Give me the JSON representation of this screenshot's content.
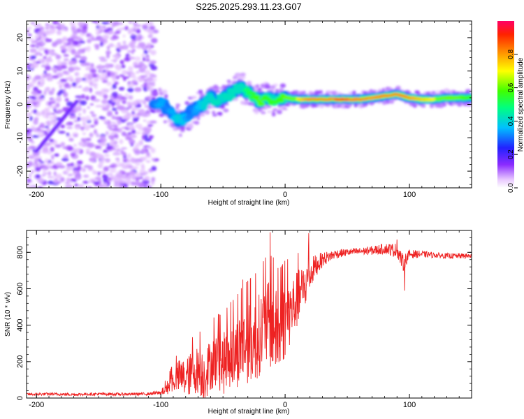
{
  "figure": {
    "title": "S225.2025.293.11.23.G07"
  },
  "chart_data": [
    {
      "type": "heatmap",
      "name": "spectrogram",
      "xlabel": "Height of straight line (km)",
      "ylabel": "Frequency (Hz)",
      "xlim": [
        -208,
        150
      ],
      "ylim": [
        -25,
        25
      ],
      "xticks": [
        -200,
        -100,
        0,
        100
      ],
      "yticks": [
        -20,
        -10,
        0,
        10,
        20
      ],
      "xtick_labels": [
        "-200",
        "-100",
        "0",
        "100"
      ],
      "ytick_labels": [
        "-20",
        "-10",
        "0",
        "10",
        "20"
      ],
      "noise_region": {
        "x": [
          -208,
          -104
        ],
        "y": [
          -25,
          25
        ],
        "level": 0.12
      },
      "ridge": {
        "x": [
          -105,
          -100,
          -95,
          -90,
          -85,
          -80,
          -75,
          -70,
          -65,
          -60,
          -55,
          -50,
          -45,
          -40,
          -35,
          -30,
          -25,
          -20,
          -15,
          -10,
          -5,
          0,
          10,
          20,
          30,
          40,
          50,
          60,
          70,
          80,
          90,
          100,
          110,
          120,
          130,
          140,
          150
        ],
        "freq": [
          -1,
          1,
          -2,
          -3,
          -5,
          -4,
          -2,
          -1,
          0,
          2,
          1,
          2,
          3,
          4,
          5,
          4,
          2,
          1,
          2,
          1,
          2,
          2,
          1.5,
          1.5,
          1.5,
          1.5,
          1.5,
          1.5,
          2,
          2.5,
          3,
          2,
          1.5,
          1.5,
          2,
          2,
          2
        ],
        "amplitude": [
          0.3,
          0.35,
          0.3,
          0.35,
          0.4,
          0.35,
          0.3,
          0.35,
          0.4,
          0.4,
          0.45,
          0.4,
          0.45,
          0.45,
          0.45,
          0.5,
          0.55,
          0.6,
          0.55,
          0.55,
          0.55,
          0.6,
          0.7,
          0.85,
          0.85,
          0.9,
          0.9,
          0.85,
          0.8,
          0.85,
          0.85,
          0.8,
          0.75,
          0.7,
          0.6,
          0.6,
          0.55
        ]
      },
      "colorbar": {
        "label": "Normalized spectral amplitude",
        "range": [
          0,
          1
        ],
        "ticks": [
          0.0,
          0.2,
          0.4,
          0.6,
          0.8
        ],
        "tick_labels": [
          "0.0",
          "0.2",
          "0.4",
          "0.6",
          "0.8"
        ]
      }
    },
    {
      "type": "line",
      "name": "snr",
      "xlabel": "Height of straight line (km)",
      "ylabel": "SNR (10 * v/v)",
      "xlim": [
        -208,
        150
      ],
      "ylim": [
        0,
        920
      ],
      "xticks": [
        -200,
        -100,
        0,
        100
      ],
      "yticks": [
        0,
        200,
        400,
        600,
        800
      ],
      "xtick_labels": [
        "-200",
        "-100",
        "0",
        "100"
      ],
      "ytick_labels": [
        "0",
        "200",
        "400",
        "600",
        "800"
      ],
      "color": "#ee2222",
      "series": [
        {
          "name": "SNR",
          "x": [
            -208,
            -190,
            -170,
            -150,
            -130,
            -110,
            -100,
            -95,
            -90,
            -85,
            -80,
            -75,
            -70,
            -65,
            -60,
            -55,
            -50,
            -45,
            -40,
            -35,
            -30,
            -25,
            -20,
            -15,
            -10,
            -5,
            0,
            5,
            10,
            15,
            20,
            25,
            30,
            40,
            50,
            60,
            70,
            80,
            90,
            95,
            100,
            110,
            120,
            130,
            140,
            150
          ],
          "y": [
            20,
            22,
            20,
            22,
            21,
            23,
            30,
            60,
            100,
            130,
            120,
            150,
            170,
            140,
            200,
            230,
            200,
            250,
            260,
            300,
            320,
            330,
            380,
            420,
            420,
            360,
            450,
            500,
            560,
            620,
            680,
            730,
            760,
            790,
            800,
            805,
            810,
            820,
            810,
            740,
            790,
            790,
            785,
            780,
            780,
            780
          ],
          "noise": [
            8,
            8,
            8,
            8,
            8,
            8,
            12,
            30,
            50,
            80,
            90,
            100,
            110,
            120,
            120,
            130,
            140,
            150,
            160,
            170,
            180,
            190,
            190,
            200,
            200,
            190,
            170,
            150,
            130,
            110,
            90,
            60,
            40,
            25,
            20,
            20,
            25,
            30,
            40,
            45,
            25,
            18,
            15,
            15,
            15,
            15
          ]
        }
      ],
      "spikes": [
        {
          "x": -12,
          "y": 910
        },
        {
          "x": 19,
          "y": 905
        },
        {
          "x": -34,
          "y": 650
        },
        {
          "x": 90,
          "y": 870
        },
        {
          "x": 96,
          "y": 590
        }
      ]
    }
  ]
}
